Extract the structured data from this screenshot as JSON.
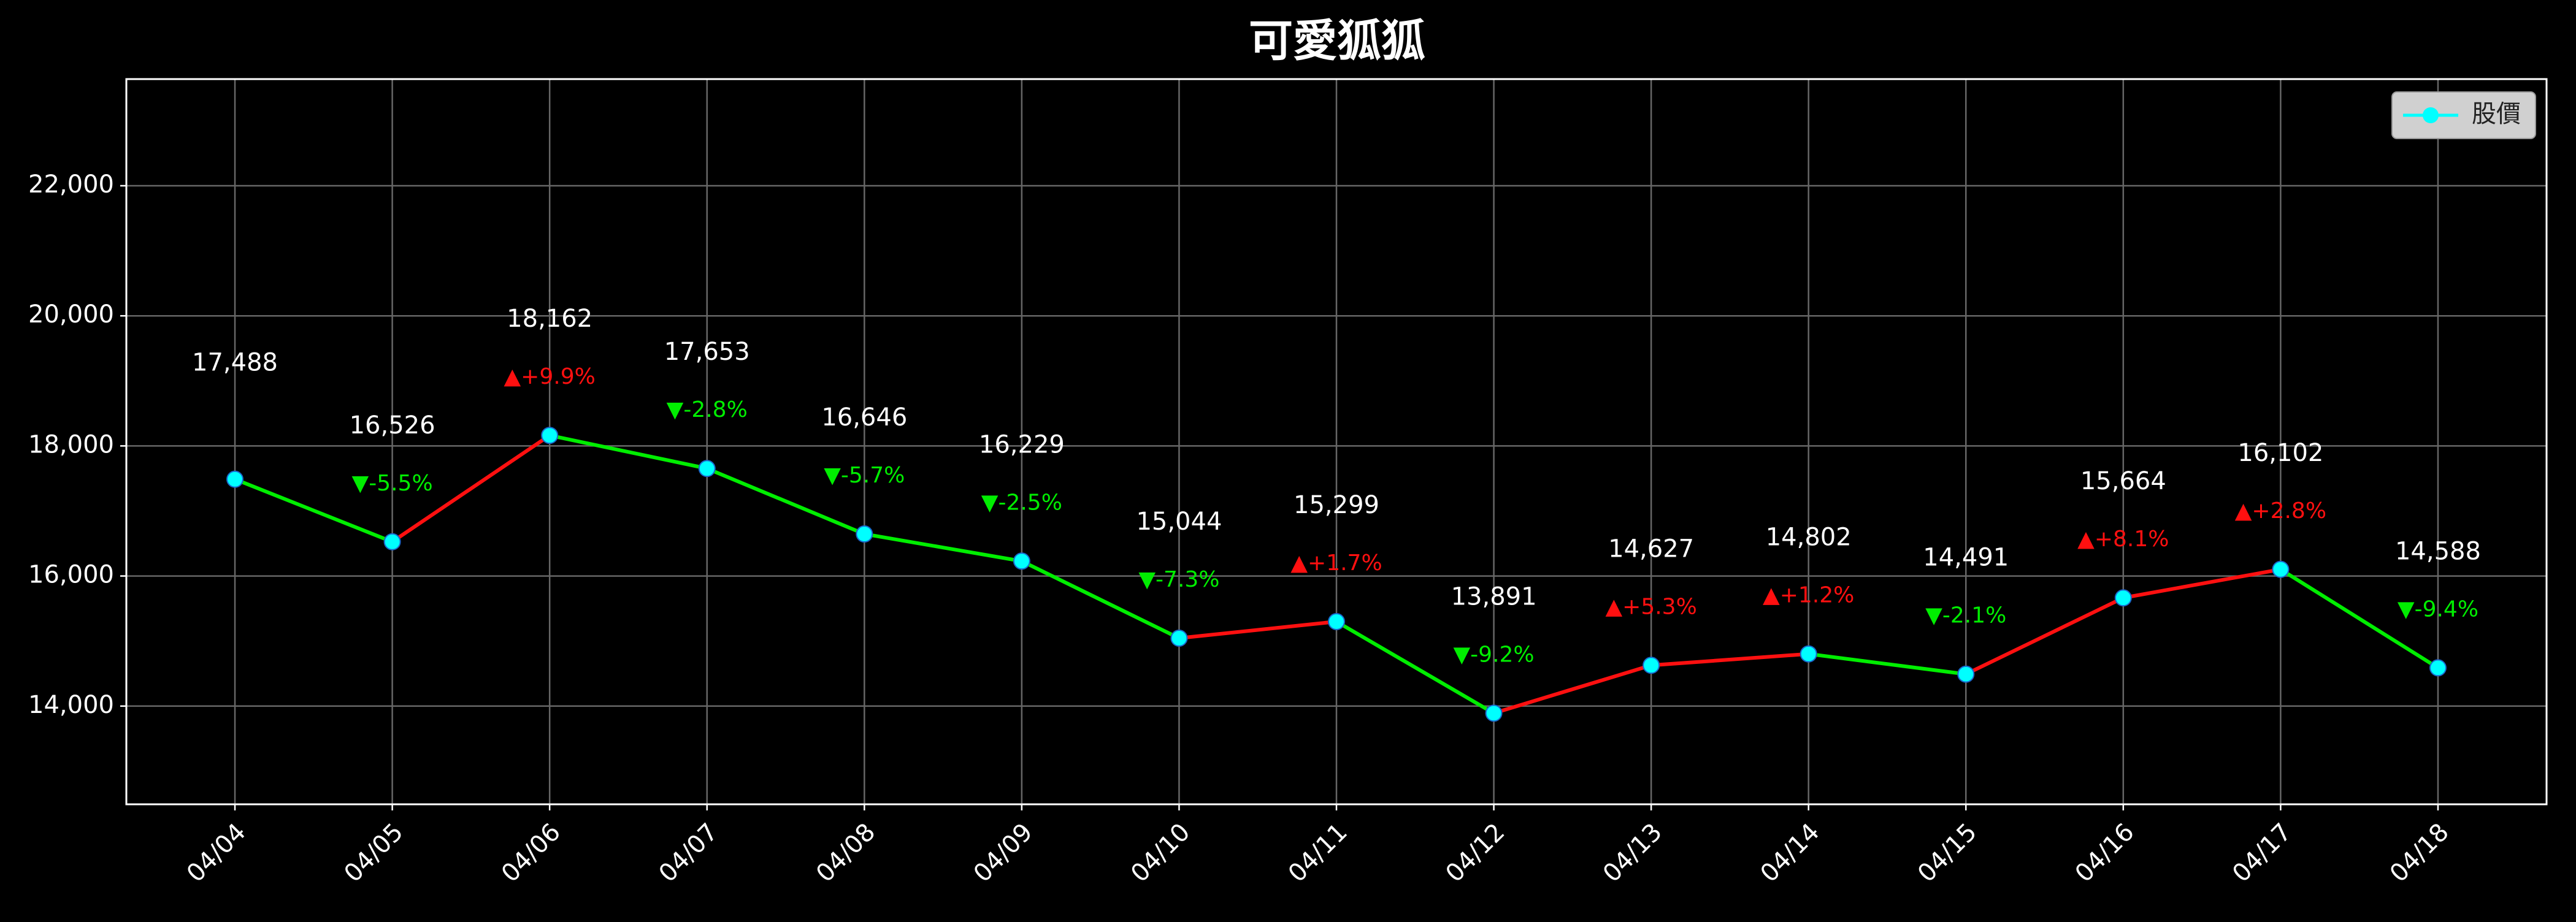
{
  "chart_data": {
    "type": "line",
    "title": "可愛狐狐",
    "categories": [
      "04/04",
      "04/05",
      "04/06",
      "04/07",
      "04/08",
      "04/09",
      "04/10",
      "04/11",
      "04/12",
      "04/13",
      "04/14",
      "04/15",
      "04/16",
      "04/17",
      "04/18"
    ],
    "series": [
      {
        "name": "股價",
        "color": "#00ffff",
        "values": [
          17488,
          16526,
          18162,
          17653,
          16646,
          16229,
          15044,
          15299,
          13891,
          14627,
          14802,
          14491,
          15664,
          16102,
          14588
        ],
        "value_labels": [
          "17,488",
          "16,526",
          "18,162",
          "17,653",
          "16,646",
          "16,229",
          "15,044",
          "15,299",
          "13,891",
          "14,627",
          "14,802",
          "14,491",
          "15,664",
          "16,102",
          "14,588"
        ],
        "change_labels": [
          null,
          "▼-5.5%",
          "▲+9.9%",
          "▼-2.8%",
          "▼-5.7%",
          "▼-2.5%",
          "▼-7.3%",
          "▲+1.7%",
          "▼-9.2%",
          "▲+5.3%",
          "▲+1.2%",
          "▼-2.1%",
          "▲+8.1%",
          "▲+2.8%",
          "▼-9.4%"
        ]
      }
    ],
    "up_color": "#ff1010",
    "down_color": "#00ee00",
    "xlim": [
      -0.69,
      14.69
    ],
    "ylim": [
      12490,
      23640
    ],
    "yticks": [
      {
        "value": 14000,
        "label": "14,000"
      },
      {
        "value": 16000,
        "label": "16,000"
      },
      {
        "value": 18000,
        "label": "18,000"
      },
      {
        "value": 20000,
        "label": "20,000"
      },
      {
        "value": 22000,
        "label": "22,000"
      }
    ],
    "grid": true,
    "legend": "upper right"
  }
}
